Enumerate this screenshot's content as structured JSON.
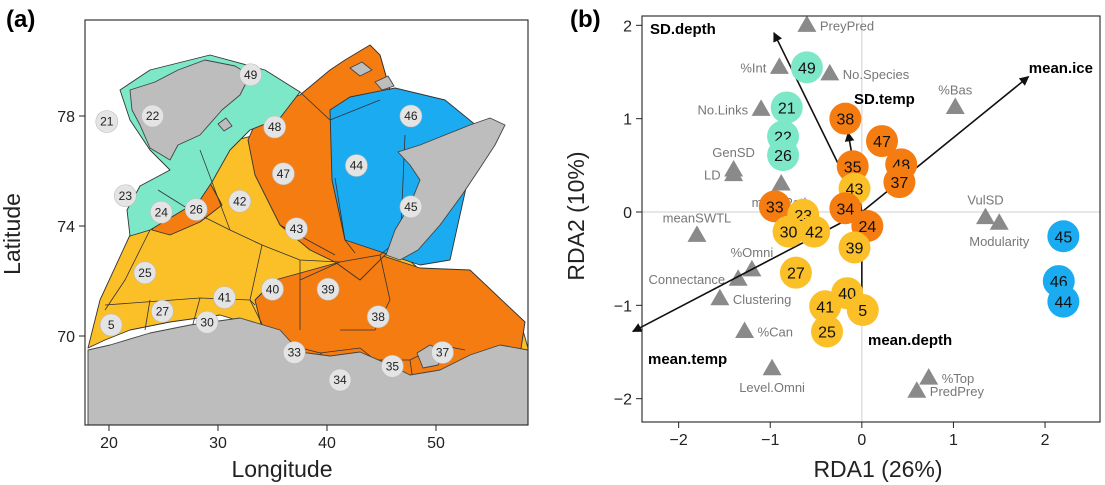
{
  "panel_a": {
    "label": "(a)",
    "xlabel": "Longitude",
    "ylabel": "Latitude",
    "xticks": [
      "20",
      "30",
      "40",
      "50"
    ],
    "yticks": [
      "70",
      "74",
      "78"
    ],
    "regions": [
      {
        "id": "49",
        "cluster": "green",
        "lon": 33.0,
        "lat": 79.5
      },
      {
        "id": "21",
        "cluster": "green",
        "lon": 19.8,
        "lat": 77.8
      },
      {
        "id": "22",
        "cluster": "green",
        "lon": 24.0,
        "lat": 78.0
      },
      {
        "id": "23",
        "cluster": "yellow",
        "lon": 21.5,
        "lat": 75.1
      },
      {
        "id": "24",
        "cluster": "orange",
        "lon": 24.8,
        "lat": 74.5
      },
      {
        "id": "26",
        "cluster": "green",
        "lon": 28.0,
        "lat": 74.6
      },
      {
        "id": "42",
        "cluster": "yellow",
        "lon": 32.0,
        "lat": 74.9
      },
      {
        "id": "48",
        "cluster": "orange",
        "lon": 35.2,
        "lat": 77.6
      },
      {
        "id": "47",
        "cluster": "orange",
        "lon": 36.0,
        "lat": 75.9
      },
      {
        "id": "46",
        "cluster": "blue",
        "lon": 47.7,
        "lat": 78.0
      },
      {
        "id": "44",
        "cluster": "blue",
        "lon": 42.7,
        "lat": 76.2
      },
      {
        "id": "45",
        "cluster": "blue",
        "lon": 47.7,
        "lat": 74.7
      },
      {
        "id": "43",
        "cluster": "yellow",
        "lon": 37.2,
        "lat": 73.9
      },
      {
        "id": "25",
        "cluster": "yellow",
        "lon": 23.3,
        "lat": 72.3
      },
      {
        "id": "40",
        "cluster": "yellow",
        "lon": 35.0,
        "lat": 71.7
      },
      {
        "id": "39",
        "cluster": "yellow",
        "lon": 40.1,
        "lat": 71.7
      },
      {
        "id": "41",
        "cluster": "yellow",
        "lon": 30.6,
        "lat": 71.4
      },
      {
        "id": "27",
        "cluster": "yellow",
        "lon": 24.9,
        "lat": 70.9
      },
      {
        "id": "5",
        "cluster": "yellow",
        "lon": 20.2,
        "lat": 70.4
      },
      {
        "id": "30",
        "cluster": "yellow",
        "lon": 29.0,
        "lat": 70.5
      },
      {
        "id": "38",
        "cluster": "orange",
        "lon": 44.7,
        "lat": 70.7
      },
      {
        "id": "33",
        "cluster": "orange",
        "lon": 37.0,
        "lat": 69.4
      },
      {
        "id": "35",
        "cluster": "orange",
        "lon": 46.0,
        "lat": 68.9
      },
      {
        "id": "37",
        "cluster": "orange",
        "lon": 50.6,
        "lat": 69.4
      },
      {
        "id": "34",
        "cluster": "orange",
        "lon": 41.2,
        "lat": 68.4
      }
    ]
  },
  "chart_data": {
    "type": "scatter",
    "label": "(b)",
    "xlabel": "RDA1 (26%)",
    "ylabel": "RDA2 (10%)",
    "xlim": [
      -2.4,
      2.6
    ],
    "ylim": [
      -2.25,
      2.1
    ],
    "xticks": [
      -2,
      -1,
      0,
      1,
      2
    ],
    "yticks": [
      -2,
      -1,
      0,
      1,
      2
    ],
    "zero_lines": true,
    "sites": [
      {
        "id": "49",
        "cluster": "green",
        "x": -0.6,
        "y": 1.55
      },
      {
        "id": "21",
        "cluster": "green",
        "x": -0.82,
        "y": 1.12
      },
      {
        "id": "22",
        "cluster": "green",
        "x": -0.86,
        "y": 0.81
      },
      {
        "id": "26",
        "cluster": "green",
        "x": -0.86,
        "y": 0.61
      },
      {
        "id": "38",
        "cluster": "orange",
        "x": -0.18,
        "y": 1.0
      },
      {
        "id": "47",
        "cluster": "orange",
        "x": 0.22,
        "y": 0.76
      },
      {
        "id": "35",
        "cluster": "orange",
        "x": -0.1,
        "y": 0.49
      },
      {
        "id": "48",
        "cluster": "orange",
        "x": 0.43,
        "y": 0.51
      },
      {
        "id": "37",
        "cluster": "orange",
        "x": 0.41,
        "y": 0.32
      },
      {
        "id": "43",
        "cluster": "yellow",
        "x": -0.08,
        "y": 0.25
      },
      {
        "id": "33",
        "cluster": "orange",
        "x": -0.95,
        "y": 0.06
      },
      {
        "id": "34",
        "cluster": "orange",
        "x": -0.18,
        "y": 0.04
      },
      {
        "id": "23",
        "cluster": "yellow",
        "x": -0.64,
        "y": -0.03
      },
      {
        "id": "30",
        "cluster": "yellow",
        "x": -0.8,
        "y": -0.21
      },
      {
        "id": "42",
        "cluster": "yellow",
        "x": -0.52,
        "y": -0.21
      },
      {
        "id": "24",
        "cluster": "orange",
        "x": 0.06,
        "y": -0.15
      },
      {
        "id": "39",
        "cluster": "yellow",
        "x": -0.08,
        "y": -0.38
      },
      {
        "id": "27",
        "cluster": "yellow",
        "x": -0.72,
        "y": -0.65
      },
      {
        "id": "40",
        "cluster": "yellow",
        "x": -0.16,
        "y": -0.87
      },
      {
        "id": "41",
        "cluster": "yellow",
        "x": -0.4,
        "y": -1.01
      },
      {
        "id": "5",
        "cluster": "yellow",
        "x": 0.01,
        "y": -1.05
      },
      {
        "id": "25",
        "cluster": "yellow",
        "x": -0.38,
        "y": -1.28
      },
      {
        "id": "45",
        "cluster": "blue",
        "x": 2.2,
        "y": -0.26
      },
      {
        "id": "46",
        "cluster": "blue",
        "x": 2.15,
        "y": -0.74
      },
      {
        "id": "44",
        "cluster": "blue",
        "x": 2.2,
        "y": -0.96
      }
    ],
    "metrics": [
      {
        "name": "PreyPred",
        "x": -0.6,
        "y": 2.0,
        "label_side": "right"
      },
      {
        "name": "%Int",
        "x": -0.9,
        "y": 1.55,
        "label_side": "left"
      },
      {
        "name": "No.Species",
        "x": -0.35,
        "y": 1.48,
        "label_side": "right"
      },
      {
        "name": "%Bas",
        "x": 1.02,
        "y": 1.12,
        "label_side": "above"
      },
      {
        "name": "No.Links",
        "x": -1.1,
        "y": 1.1,
        "label_side": "left"
      },
      {
        "name": "GenSD",
        "x": -1.4,
        "y": 0.45,
        "label_side": "above"
      },
      {
        "name": "LD",
        "x": -1.4,
        "y": 0.4,
        "label_side": "left"
      },
      {
        "name": "meanPath",
        "x": -0.88,
        "y": 0.3,
        "label_side": "below"
      },
      {
        "name": "meanSWTL",
        "x": -1.8,
        "y": -0.25,
        "label_side": "above"
      },
      {
        "name": "VulSD",
        "x": 1.35,
        "y": -0.06,
        "label_side": "above"
      },
      {
        "name": "Modularity",
        "x": 1.5,
        "y": -0.12,
        "label_side": "below"
      },
      {
        "name": "%Omni",
        "x": -1.2,
        "y": -0.62,
        "label_side": "above"
      },
      {
        "name": "Connectance",
        "x": -1.35,
        "y": -0.72,
        "label_side": "left"
      },
      {
        "name": "Clustering",
        "x": -1.55,
        "y": -0.93,
        "label_side": "right"
      },
      {
        "name": "%Can",
        "x": -1.28,
        "y": -1.28,
        "label_side": "right"
      },
      {
        "name": "Level.Omni",
        "x": -0.98,
        "y": -1.68,
        "label_side": "below"
      },
      {
        "name": "%Top",
        "x": 0.73,
        "y": -1.78,
        "label_side": "right"
      },
      {
        "name": "PredPrey",
        "x": 0.6,
        "y": -1.92,
        "label_side": "right"
      }
    ],
    "env_vectors": [
      {
        "name": "SD.depth",
        "x": -0.96,
        "y": 1.92
      },
      {
        "name": "mean.ice",
        "x": 1.82,
        "y": 1.45
      },
      {
        "name": "SD.temp",
        "x": -0.15,
        "y": 0.85
      },
      {
        "name": "mean.temp",
        "x": -2.5,
        "y": -1.28
      },
      {
        "name": "mean.depth",
        "x": 0.0,
        "y": -1.05
      }
    ],
    "colors": {
      "green": "#7de8c8",
      "blue": "#1aabf0",
      "orange": "#f57c10",
      "yellow": "#fbbf28",
      "metric": "#8a8a8a",
      "land": "#bdbdbd"
    }
  }
}
